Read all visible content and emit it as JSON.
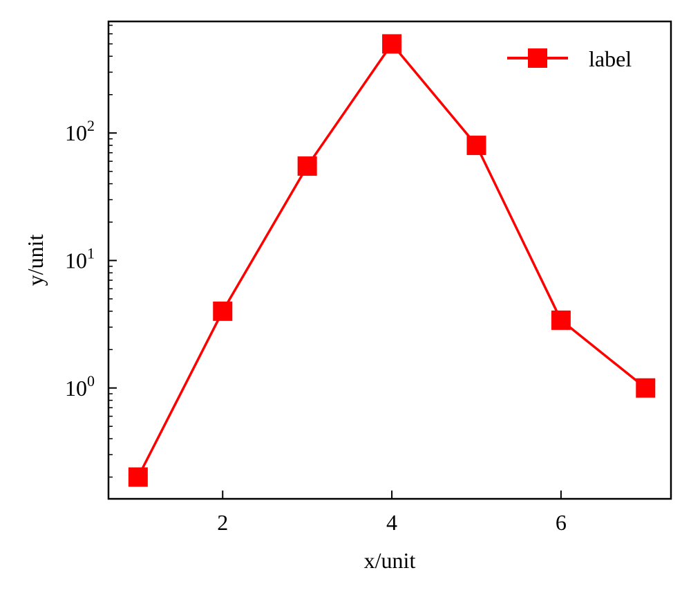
{
  "chart_data": {
    "type": "line",
    "xlabel": "x/unit",
    "ylabel": "y/unit",
    "x": [
      1,
      2,
      3,
      4,
      5,
      6,
      7
    ],
    "series": [
      {
        "name": "label",
        "values": [
          0.2,
          4,
          55,
          500,
          80,
          3.4,
          1
        ],
        "color": "#ff0000",
        "marker": "square"
      }
    ],
    "xlim": [
      0.65,
      7.3
    ],
    "ylim": [
      0.135,
      750
    ],
    "yscale": "log",
    "xticks": [
      2,
      4,
      6
    ],
    "xtick_labels": [
      "2",
      "4",
      "6"
    ],
    "yticks_major": [
      {
        "value": 1,
        "base": "10",
        "exp": "0"
      },
      {
        "value": 10,
        "base": "10",
        "exp": "1"
      },
      {
        "value": 100,
        "base": "10",
        "exp": "2"
      }
    ],
    "grid": false,
    "legend_position": "top-right"
  }
}
